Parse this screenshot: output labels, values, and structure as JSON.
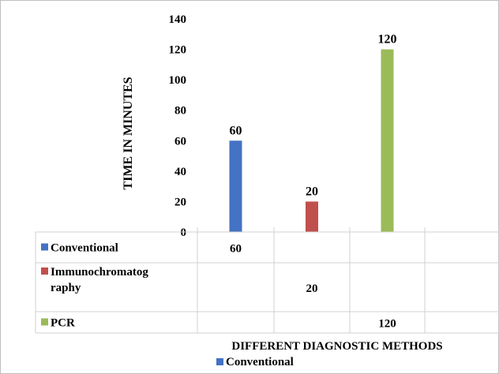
{
  "chart_data": {
    "type": "bar",
    "ylabel": "TIME IN MINUTES",
    "xlabel": "DIFFERENT DIAGNOSTIC METHODS",
    "ylim": [
      0,
      140
    ],
    "yticks": [
      0,
      20,
      40,
      60,
      80,
      100,
      120,
      140
    ],
    "grid": false,
    "legend_position": "bottom",
    "legend": [
      "Conventional"
    ],
    "series": [
      {
        "name": "Conventional",
        "color": "#4472c4",
        "values": [
          60,
          null,
          null,
          null
        ]
      },
      {
        "name": "Immunochromatography",
        "display_name": "Immunochromatog\nraphy",
        "color": "#c0504d",
        "values": [
          null,
          20,
          null,
          null
        ]
      },
      {
        "name": "PCR",
        "color": "#9bbb59",
        "values": [
          null,
          null,
          120,
          null
        ]
      }
    ],
    "data_table": true
  }
}
